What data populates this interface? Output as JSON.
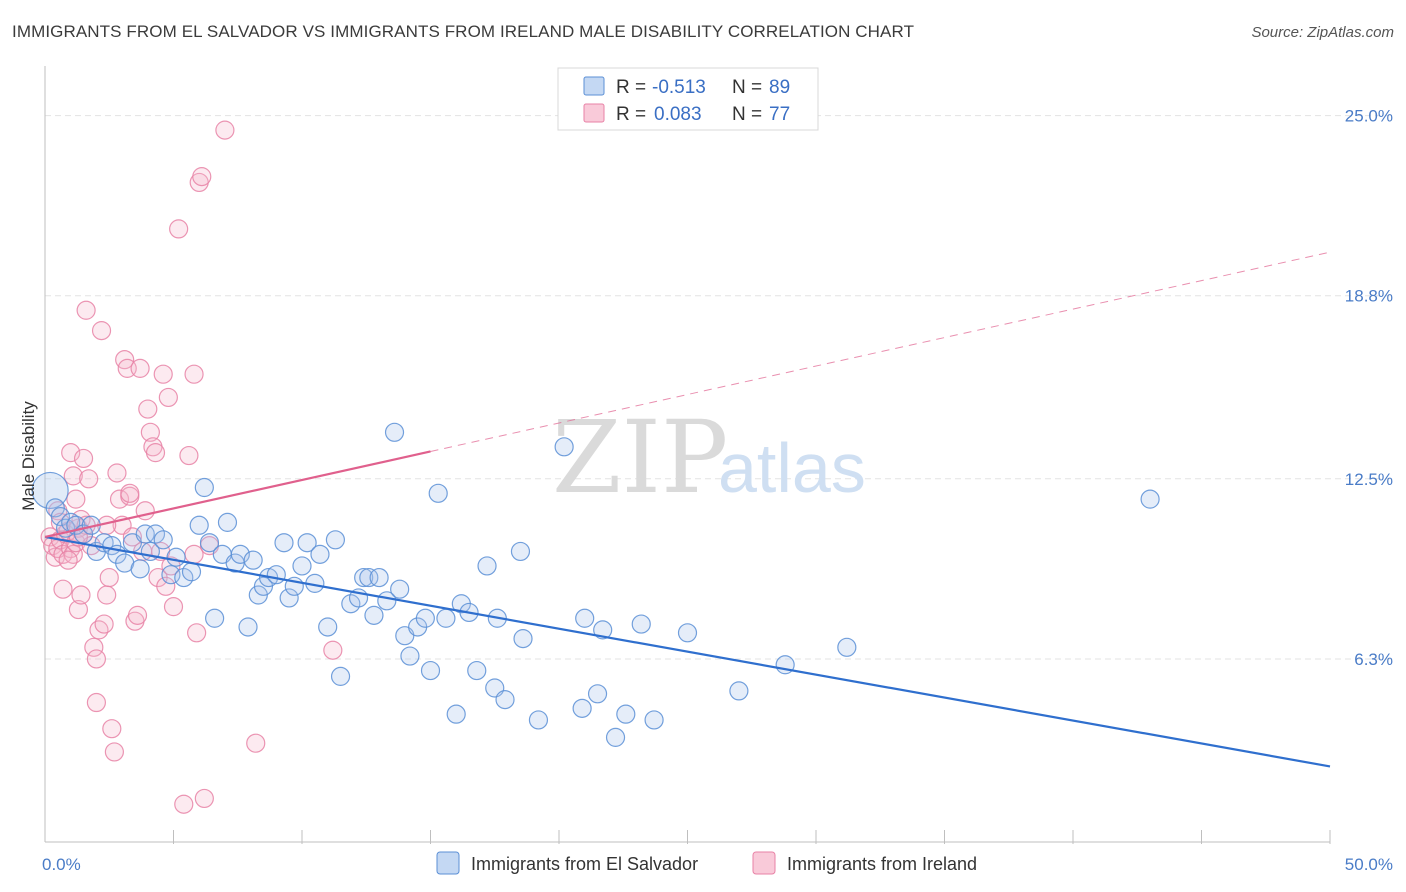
{
  "title": "IMMIGRANTS FROM EL SALVADOR VS IMMIGRANTS FROM IRELAND MALE DISABILITY CORRELATION CHART",
  "source": "Source: ZipAtlas.com",
  "watermark": {
    "zip": "ZIP",
    "atlas": "atlas"
  },
  "colors": {
    "blue": "#5b8fd6",
    "blue_line": "#2f6fce",
    "pink": "#e882a6",
    "pink_line": "#e0608d",
    "tick_text": "#4a7cc7"
  },
  "legend": {
    "rows": [
      {
        "r_label": "R =",
        "r_value": "-0.513",
        "n_label": "N =",
        "n_value": "89"
      },
      {
        "r_label": "R =",
        "r_value": "0.083",
        "n_label": "N =",
        "n_value": "77"
      }
    ]
  },
  "chart_data": {
    "type": "scatter",
    "title": "IMMIGRANTS FROM EL SALVADOR VS IMMIGRANTS FROM IRELAND MALE DISABILITY CORRELATION CHART",
    "xlabel": "",
    "ylabel": "Male Disability",
    "xlim": [
      0,
      50
    ],
    "ylim": [
      0,
      26.5
    ],
    "x_tick_labels": [
      "0.0%",
      "50.0%"
    ],
    "y_ticks": [
      6.3,
      12.5,
      18.8,
      25.0
    ],
    "y_tick_labels": [
      "6.3%",
      "12.5%",
      "18.8%",
      "25.0%"
    ],
    "grid": "horizontal dashed",
    "legend_position": "top-center",
    "series": [
      {
        "name": "Immigrants from El Salvador",
        "color": "#5b8fd6",
        "r": -0.513,
        "n": 89,
        "trend": {
          "x": [
            0,
            50
          ],
          "y": [
            10.5,
            2.6
          ],
          "dashed_from": null
        },
        "points": [
          [
            0.2,
            12.1
          ],
          [
            0.4,
            11.5
          ],
          [
            0.6,
            11.2
          ],
          [
            0.8,
            10.8
          ],
          [
            1.0,
            11.0
          ],
          [
            1.2,
            10.9
          ],
          [
            1.5,
            10.6
          ],
          [
            1.8,
            10.9
          ],
          [
            2.0,
            10.0
          ],
          [
            2.3,
            10.3
          ],
          [
            2.6,
            10.2
          ],
          [
            2.8,
            9.9
          ],
          [
            3.1,
            9.6
          ],
          [
            3.4,
            10.3
          ],
          [
            3.7,
            9.4
          ],
          [
            3.9,
            10.6
          ],
          [
            4.1,
            10.0
          ],
          [
            4.3,
            10.6
          ],
          [
            4.6,
            10.4
          ],
          [
            4.9,
            9.2
          ],
          [
            5.1,
            9.8
          ],
          [
            5.4,
            9.1
          ],
          [
            5.7,
            9.3
          ],
          [
            6.0,
            10.9
          ],
          [
            6.2,
            12.2
          ],
          [
            6.4,
            10.3
          ],
          [
            6.6,
            7.7
          ],
          [
            6.9,
            9.9
          ],
          [
            7.1,
            11.0
          ],
          [
            7.4,
            9.6
          ],
          [
            7.6,
            9.9
          ],
          [
            7.9,
            7.4
          ],
          [
            8.1,
            9.7
          ],
          [
            8.3,
            8.5
          ],
          [
            8.5,
            8.8
          ],
          [
            8.7,
            9.1
          ],
          [
            9.0,
            9.2
          ],
          [
            9.3,
            10.3
          ],
          [
            9.5,
            8.4
          ],
          [
            9.7,
            8.8
          ],
          [
            10.0,
            9.5
          ],
          [
            10.2,
            10.3
          ],
          [
            10.5,
            8.9
          ],
          [
            10.7,
            9.9
          ],
          [
            11.0,
            7.4
          ],
          [
            11.3,
            10.4
          ],
          [
            11.5,
            5.7
          ],
          [
            11.9,
            8.2
          ],
          [
            12.2,
            8.4
          ],
          [
            12.4,
            9.1
          ],
          [
            12.6,
            9.1
          ],
          [
            12.8,
            7.8
          ],
          [
            13.0,
            9.1
          ],
          [
            13.3,
            8.3
          ],
          [
            13.6,
            14.1
          ],
          [
            13.8,
            8.7
          ],
          [
            14.0,
            7.1
          ],
          [
            14.2,
            6.4
          ],
          [
            14.5,
            7.4
          ],
          [
            14.8,
            7.7
          ],
          [
            15.0,
            5.9
          ],
          [
            15.3,
            12.0
          ],
          [
            15.6,
            7.7
          ],
          [
            16.0,
            4.4
          ],
          [
            16.2,
            8.2
          ],
          [
            16.5,
            7.9
          ],
          [
            16.8,
            5.9
          ],
          [
            17.2,
            9.5
          ],
          [
            17.5,
            5.3
          ],
          [
            17.6,
            7.7
          ],
          [
            17.9,
            4.9
          ],
          [
            18.6,
            7.0
          ],
          [
            18.5,
            10.0
          ],
          [
            19.2,
            4.2
          ],
          [
            20.2,
            13.6
          ],
          [
            20.9,
            4.6
          ],
          [
            21.5,
            5.1
          ],
          [
            21.0,
            7.7
          ],
          [
            21.7,
            7.3
          ],
          [
            22.2,
            3.6
          ],
          [
            22.6,
            4.4
          ],
          [
            23.2,
            7.5
          ],
          [
            23.7,
            4.2
          ],
          [
            25.0,
            7.2
          ],
          [
            27.0,
            5.2
          ],
          [
            28.8,
            6.1
          ],
          [
            31.2,
            6.7
          ],
          [
            43.0,
            11.8
          ]
        ]
      },
      {
        "name": "Immigrants from Ireland",
        "color": "#e882a6",
        "r": 0.083,
        "n": 77,
        "trend": {
          "x": [
            0,
            50
          ],
          "y": [
            10.5,
            20.3
          ],
          "solid_until_x": 15.0
        },
        "points": [
          [
            0.2,
            10.5
          ],
          [
            0.3,
            10.2
          ],
          [
            0.4,
            9.8
          ],
          [
            0.5,
            10.1
          ],
          [
            0.6,
            10.4
          ],
          [
            0.7,
            9.9
          ],
          [
            0.8,
            10.6
          ],
          [
            0.9,
            10.7
          ],
          [
            1.0,
            10.1
          ],
          [
            1.1,
            9.9
          ],
          [
            1.2,
            10.3
          ],
          [
            1.3,
            10.8
          ],
          [
            1.4,
            11.1
          ],
          [
            1.5,
            10.6
          ],
          [
            1.6,
            10.9
          ],
          [
            0.7,
            8.7
          ],
          [
            0.9,
            9.7
          ],
          [
            1.0,
            13.4
          ],
          [
            1.1,
            12.6
          ],
          [
            1.2,
            11.8
          ],
          [
            1.3,
            8.0
          ],
          [
            1.4,
            8.5
          ],
          [
            1.5,
            13.2
          ],
          [
            1.7,
            12.5
          ],
          [
            1.8,
            10.2
          ],
          [
            1.9,
            6.7
          ],
          [
            2.0,
            6.3
          ],
          [
            2.1,
            7.3
          ],
          [
            2.2,
            17.6
          ],
          [
            2.3,
            7.5
          ],
          [
            2.4,
            8.5
          ],
          [
            2.5,
            9.1
          ],
          [
            2.6,
            3.9
          ],
          [
            2.7,
            3.1
          ],
          [
            2.8,
            12.7
          ],
          [
            2.9,
            11.8
          ],
          [
            3.0,
            10.9
          ],
          [
            3.1,
            16.6
          ],
          [
            3.2,
            16.3
          ],
          [
            3.3,
            11.9
          ],
          [
            3.4,
            10.5
          ],
          [
            3.5,
            7.6
          ],
          [
            3.6,
            7.8
          ],
          [
            3.7,
            16.3
          ],
          [
            3.8,
            10.0
          ],
          [
            3.9,
            11.4
          ],
          [
            4.0,
            14.9
          ],
          [
            4.1,
            14.1
          ],
          [
            4.2,
            13.6
          ],
          [
            4.3,
            13.4
          ],
          [
            4.4,
            9.1
          ],
          [
            4.5,
            10.0
          ],
          [
            4.6,
            16.1
          ],
          [
            4.7,
            8.8
          ],
          [
            4.8,
            15.3
          ],
          [
            5.0,
            8.1
          ],
          [
            5.2,
            21.1
          ],
          [
            5.4,
            1.3
          ],
          [
            5.6,
            13.3
          ],
          [
            5.8,
            16.1
          ],
          [
            5.9,
            7.2
          ],
          [
            6.0,
            22.7
          ],
          [
            6.1,
            22.9
          ],
          [
            6.2,
            1.5
          ],
          [
            6.4,
            10.2
          ],
          [
            7.0,
            24.5
          ],
          [
            8.2,
            3.4
          ],
          [
            11.2,
            6.6
          ],
          [
            1.6,
            18.3
          ],
          [
            2.0,
            4.8
          ],
          [
            2.4,
            10.9
          ],
          [
            0.5,
            11.4
          ],
          [
            0.6,
            11.0
          ],
          [
            1.3,
            10.5
          ],
          [
            3.3,
            12.0
          ],
          [
            4.9,
            9.5
          ],
          [
            5.8,
            9.9
          ]
        ]
      }
    ]
  }
}
